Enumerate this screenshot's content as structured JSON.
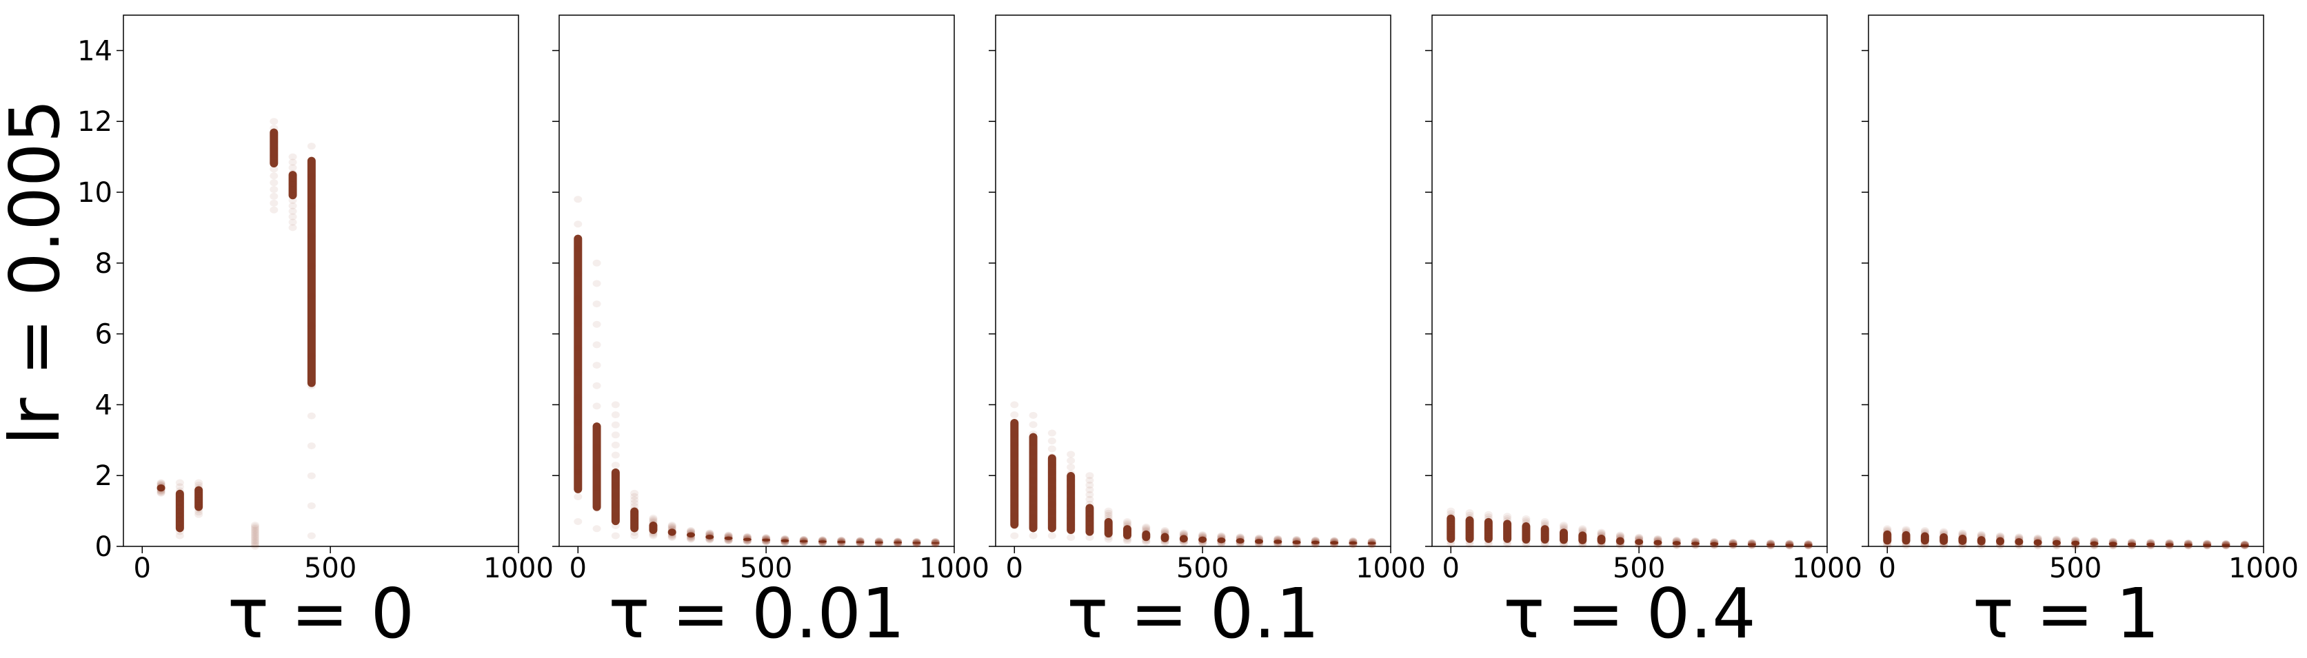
{
  "figure": {
    "ylabel": "lr = 0.005",
    "point_color": "#7a2a12"
  },
  "chart_data": [
    {
      "type": "scatter",
      "xlabel": "τ = 0",
      "xlim": [
        -50,
        1000
      ],
      "ylim": [
        0,
        15
      ],
      "xticks": [
        0,
        500,
        1000
      ],
      "yticks": [
        0,
        2,
        4,
        6,
        8,
        10,
        12,
        14
      ],
      "xtick_labels": [
        "0",
        "500",
        "1000"
      ],
      "ytick_labels": [
        "0",
        "2",
        "4",
        "6",
        "8",
        "10",
        "12",
        "14"
      ],
      "columns": [
        {
          "x": 50,
          "y_low": 1.5,
          "y_high": 1.8,
          "core_low": 1.55,
          "core_high": 1.75
        },
        {
          "x": 100,
          "y_low": 0.3,
          "y_high": 1.8,
          "core_low": 0.4,
          "core_high": 1.6
        },
        {
          "x": 150,
          "y_low": 0.9,
          "y_high": 1.8,
          "core_low": 1.0,
          "core_high": 1.7
        },
        {
          "x": 300,
          "y_low": 0.0,
          "y_high": 0.6,
          "core_low": 0.0,
          "core_high": 0.0
        },
        {
          "x": 350,
          "y_low": 9.5,
          "y_high": 12.0,
          "core_low": 10.7,
          "core_high": 11.8
        },
        {
          "x": 400,
          "y_low": 9.0,
          "y_high": 11.0,
          "core_low": 9.8,
          "core_high": 10.6
        },
        {
          "x": 450,
          "y_low": 0.3,
          "y_high": 11.3,
          "core_low": 4.5,
          "core_high": 11.0
        }
      ]
    },
    {
      "type": "scatter",
      "xlabel": "τ = 0.01",
      "xlim": [
        -50,
        1000
      ],
      "ylim": [
        0,
        15
      ],
      "xticks": [
        0,
        500,
        1000
      ],
      "yticks": [
        0,
        2,
        4,
        6,
        8,
        10,
        12,
        14
      ],
      "xtick_labels": [
        "0",
        "500",
        "1000"
      ],
      "columns": [
        {
          "x": 0,
          "y_low": 0.7,
          "y_high": 9.8,
          "core_low": 1.5,
          "core_high": 8.8
        },
        {
          "x": 50,
          "y_low": 0.5,
          "y_high": 8.0,
          "core_low": 1.0,
          "core_high": 3.5
        },
        {
          "x": 100,
          "y_low": 0.3,
          "y_high": 4.0,
          "core_low": 0.6,
          "core_high": 2.2
        },
        {
          "x": 150,
          "y_low": 0.3,
          "y_high": 1.5,
          "core_low": 0.4,
          "core_high": 1.1
        },
        {
          "x": 200,
          "y_low": 0.3,
          "y_high": 0.8,
          "core_low": 0.35,
          "core_high": 0.7
        },
        {
          "x": 250,
          "y_low": 0.25,
          "y_high": 0.6,
          "core_low": 0.3,
          "core_high": 0.5
        },
        {
          "x": 300,
          "y_low": 0.2,
          "y_high": 0.45,
          "core_low": 0.25,
          "core_high": 0.4
        },
        {
          "x": 350,
          "y_low": 0.18,
          "y_high": 0.38,
          "core_low": 0.2,
          "core_high": 0.33
        },
        {
          "x": 400,
          "y_low": 0.15,
          "y_high": 0.32,
          "core_low": 0.18,
          "core_high": 0.28
        },
        {
          "x": 450,
          "y_low": 0.13,
          "y_high": 0.28,
          "core_low": 0.15,
          "core_high": 0.24
        },
        {
          "x": 500,
          "y_low": 0.12,
          "y_high": 0.25,
          "core_low": 0.14,
          "core_high": 0.22
        },
        {
          "x": 550,
          "y_low": 0.1,
          "y_high": 0.22,
          "core_low": 0.12,
          "core_high": 0.2
        },
        {
          "x": 600,
          "y_low": 0.1,
          "y_high": 0.2,
          "core_low": 0.11,
          "core_high": 0.18
        },
        {
          "x": 650,
          "y_low": 0.09,
          "y_high": 0.19,
          "core_low": 0.1,
          "core_high": 0.17
        },
        {
          "x": 700,
          "y_low": 0.08,
          "y_high": 0.18,
          "core_low": 0.09,
          "core_high": 0.16
        },
        {
          "x": 750,
          "y_low": 0.08,
          "y_high": 0.17,
          "core_low": 0.09,
          "core_high": 0.15
        },
        {
          "x": 800,
          "y_low": 0.07,
          "y_high": 0.16,
          "core_low": 0.08,
          "core_high": 0.14
        },
        {
          "x": 850,
          "y_low": 0.07,
          "y_high": 0.15,
          "core_low": 0.08,
          "core_high": 0.14
        },
        {
          "x": 900,
          "y_low": 0.06,
          "y_high": 0.14,
          "core_low": 0.07,
          "core_high": 0.13
        },
        {
          "x": 950,
          "y_low": 0.06,
          "y_high": 0.14,
          "core_low": 0.07,
          "core_high": 0.12
        }
      ]
    },
    {
      "type": "scatter",
      "xlabel": "τ = 0.1",
      "xlim": [
        -50,
        1000
      ],
      "ylim": [
        0,
        15
      ],
      "xticks": [
        0,
        500,
        1000
      ],
      "yticks": [
        0,
        2,
        4,
        6,
        8,
        10,
        12,
        14
      ],
      "xtick_labels": [
        "0",
        "500",
        "1000"
      ],
      "columns": [
        {
          "x": 0,
          "y_low": 0.3,
          "y_high": 4.0,
          "core_low": 0.5,
          "core_high": 3.6
        },
        {
          "x": 50,
          "y_low": 0.3,
          "y_high": 3.7,
          "core_low": 0.4,
          "core_high": 3.2
        },
        {
          "x": 100,
          "y_low": 0.3,
          "y_high": 3.2,
          "core_low": 0.4,
          "core_high": 2.6
        },
        {
          "x": 150,
          "y_low": 0.25,
          "y_high": 2.6,
          "core_low": 0.35,
          "core_high": 2.1
        },
        {
          "x": 200,
          "y_low": 0.25,
          "y_high": 2.0,
          "core_low": 0.3,
          "core_high": 1.2
        },
        {
          "x": 250,
          "y_low": 0.2,
          "y_high": 1.0,
          "core_low": 0.25,
          "core_high": 0.8
        },
        {
          "x": 300,
          "y_low": 0.15,
          "y_high": 0.7,
          "core_low": 0.2,
          "core_high": 0.6
        },
        {
          "x": 350,
          "y_low": 0.12,
          "y_high": 0.55,
          "core_low": 0.15,
          "core_high": 0.45
        },
        {
          "x": 400,
          "y_low": 0.1,
          "y_high": 0.45,
          "core_low": 0.12,
          "core_high": 0.38
        },
        {
          "x": 450,
          "y_low": 0.1,
          "y_high": 0.38,
          "core_low": 0.11,
          "core_high": 0.32
        },
        {
          "x": 500,
          "y_low": 0.08,
          "y_high": 0.33,
          "core_low": 0.1,
          "core_high": 0.28
        },
        {
          "x": 550,
          "y_low": 0.07,
          "y_high": 0.3,
          "core_low": 0.09,
          "core_high": 0.25
        },
        {
          "x": 600,
          "y_low": 0.07,
          "y_high": 0.27,
          "core_low": 0.08,
          "core_high": 0.23
        },
        {
          "x": 650,
          "y_low": 0.06,
          "y_high": 0.24,
          "core_low": 0.07,
          "core_high": 0.21
        },
        {
          "x": 700,
          "y_low": 0.06,
          "y_high": 0.22,
          "core_low": 0.07,
          "core_high": 0.19
        },
        {
          "x": 750,
          "y_low": 0.05,
          "y_high": 0.2,
          "core_low": 0.06,
          "core_high": 0.17
        },
        {
          "x": 800,
          "y_low": 0.05,
          "y_high": 0.18,
          "core_low": 0.06,
          "core_high": 0.16
        },
        {
          "x": 850,
          "y_low": 0.05,
          "y_high": 0.17,
          "core_low": 0.05,
          "core_high": 0.15
        },
        {
          "x": 900,
          "y_low": 0.04,
          "y_high": 0.16,
          "core_low": 0.05,
          "core_high": 0.14
        },
        {
          "x": 950,
          "y_low": 0.04,
          "y_high": 0.15,
          "core_low": 0.05,
          "core_high": 0.13
        }
      ]
    },
    {
      "type": "scatter",
      "xlabel": "τ = 0.4",
      "xlim": [
        -50,
        1000
      ],
      "ylim": [
        0,
        15
      ],
      "xticks": [
        0,
        500,
        1000
      ],
      "yticks": [
        0,
        2,
        4,
        6,
        8,
        10,
        12,
        14
      ],
      "xtick_labels": [
        "0",
        "500",
        "1000"
      ],
      "columns": [
        {
          "x": 0,
          "y_low": 0.05,
          "y_high": 1.0,
          "core_low": 0.1,
          "core_high": 0.9
        },
        {
          "x": 50,
          "y_low": 0.05,
          "y_high": 0.95,
          "core_low": 0.1,
          "core_high": 0.85
        },
        {
          "x": 100,
          "y_low": 0.05,
          "y_high": 0.9,
          "core_low": 0.1,
          "core_high": 0.8
        },
        {
          "x": 150,
          "y_low": 0.05,
          "y_high": 0.85,
          "core_low": 0.1,
          "core_high": 0.75
        },
        {
          "x": 200,
          "y_low": 0.05,
          "y_high": 0.78,
          "core_low": 0.08,
          "core_high": 0.68
        },
        {
          "x": 250,
          "y_low": 0.05,
          "y_high": 0.7,
          "core_low": 0.08,
          "core_high": 0.6
        },
        {
          "x": 300,
          "y_low": 0.05,
          "y_high": 0.6,
          "core_low": 0.07,
          "core_high": 0.5
        },
        {
          "x": 350,
          "y_low": 0.04,
          "y_high": 0.5,
          "core_low": 0.06,
          "core_high": 0.42
        },
        {
          "x": 400,
          "y_low": 0.04,
          "y_high": 0.4,
          "core_low": 0.05,
          "core_high": 0.33
        },
        {
          "x": 450,
          "y_low": 0.03,
          "y_high": 0.32,
          "core_low": 0.04,
          "core_high": 0.26
        },
        {
          "x": 500,
          "y_low": 0.03,
          "y_high": 0.26,
          "core_low": 0.04,
          "core_high": 0.21
        },
        {
          "x": 550,
          "y_low": 0.03,
          "y_high": 0.22,
          "core_low": 0.03,
          "core_high": 0.18
        },
        {
          "x": 600,
          "y_low": 0.02,
          "y_high": 0.18,
          "core_low": 0.03,
          "core_high": 0.15
        },
        {
          "x": 650,
          "y_low": 0.02,
          "y_high": 0.16,
          "core_low": 0.03,
          "core_high": 0.13
        },
        {
          "x": 700,
          "y_low": 0.02,
          "y_high": 0.14,
          "core_low": 0.02,
          "core_high": 0.12
        },
        {
          "x": 750,
          "y_low": 0.02,
          "y_high": 0.12,
          "core_low": 0.02,
          "core_high": 0.1
        },
        {
          "x": 800,
          "y_low": 0.02,
          "y_high": 0.11,
          "core_low": 0.02,
          "core_high": 0.09
        },
        {
          "x": 850,
          "y_low": 0.01,
          "y_high": 0.1,
          "core_low": 0.02,
          "core_high": 0.08
        },
        {
          "x": 900,
          "y_low": 0.01,
          "y_high": 0.09,
          "core_low": 0.01,
          "core_high": 0.07
        },
        {
          "x": 950,
          "y_low": 0.01,
          "y_high": 0.08,
          "core_low": 0.01,
          "core_high": 0.07
        }
      ]
    },
    {
      "type": "scatter",
      "xlabel": "τ = 1",
      "xlim": [
        -50,
        1000
      ],
      "ylim": [
        0,
        15
      ],
      "xticks": [
        0,
        500,
        1000
      ],
      "yticks": [
        0,
        2,
        4,
        6,
        8,
        10,
        12,
        14
      ],
      "xtick_labels": [
        "0",
        "500",
        "1000"
      ],
      "columns": [
        {
          "x": 0,
          "y_low": 0.02,
          "y_high": 0.5,
          "core_low": 0.05,
          "core_high": 0.45
        },
        {
          "x": 50,
          "y_low": 0.02,
          "y_high": 0.48,
          "core_low": 0.05,
          "core_high": 0.43
        },
        {
          "x": 100,
          "y_low": 0.02,
          "y_high": 0.45,
          "core_low": 0.05,
          "core_high": 0.4
        },
        {
          "x": 150,
          "y_low": 0.02,
          "y_high": 0.42,
          "core_low": 0.04,
          "core_high": 0.37
        },
        {
          "x": 200,
          "y_low": 0.02,
          "y_high": 0.38,
          "core_low": 0.04,
          "core_high": 0.33
        },
        {
          "x": 250,
          "y_low": 0.02,
          "y_high": 0.34,
          "core_low": 0.03,
          "core_high": 0.29
        },
        {
          "x": 300,
          "y_low": 0.02,
          "y_high": 0.3,
          "core_low": 0.03,
          "core_high": 0.26
        },
        {
          "x": 350,
          "y_low": 0.02,
          "y_high": 0.27,
          "core_low": 0.03,
          "core_high": 0.23
        },
        {
          "x": 400,
          "y_low": 0.01,
          "y_high": 0.24,
          "core_low": 0.02,
          "core_high": 0.2
        },
        {
          "x": 450,
          "y_low": 0.01,
          "y_high": 0.21,
          "core_low": 0.02,
          "core_high": 0.18
        },
        {
          "x": 500,
          "y_low": 0.01,
          "y_high": 0.19,
          "core_low": 0.02,
          "core_high": 0.16
        },
        {
          "x": 550,
          "y_low": 0.01,
          "y_high": 0.17,
          "core_low": 0.02,
          "core_high": 0.14
        },
        {
          "x": 600,
          "y_low": 0.01,
          "y_high": 0.15,
          "core_low": 0.01,
          "core_high": 0.13
        },
        {
          "x": 650,
          "y_low": 0.01,
          "y_high": 0.13,
          "core_low": 0.01,
          "core_high": 0.11
        },
        {
          "x": 700,
          "y_low": 0.01,
          "y_high": 0.12,
          "core_low": 0.01,
          "core_high": 0.1
        },
        {
          "x": 750,
          "y_low": 0.01,
          "y_high": 0.11,
          "core_low": 0.01,
          "core_high": 0.09
        },
        {
          "x": 800,
          "y_low": 0.01,
          "y_high": 0.1,
          "core_low": 0.01,
          "core_high": 0.08
        },
        {
          "x": 850,
          "y_low": 0.01,
          "y_high": 0.09,
          "core_low": 0.01,
          "core_high": 0.07
        },
        {
          "x": 900,
          "y_low": 0.01,
          "y_high": 0.08,
          "core_low": 0.01,
          "core_high": 0.07
        },
        {
          "x": 950,
          "y_low": 0.01,
          "y_high": 0.07,
          "core_low": 0.01,
          "core_high": 0.06
        }
      ]
    }
  ]
}
